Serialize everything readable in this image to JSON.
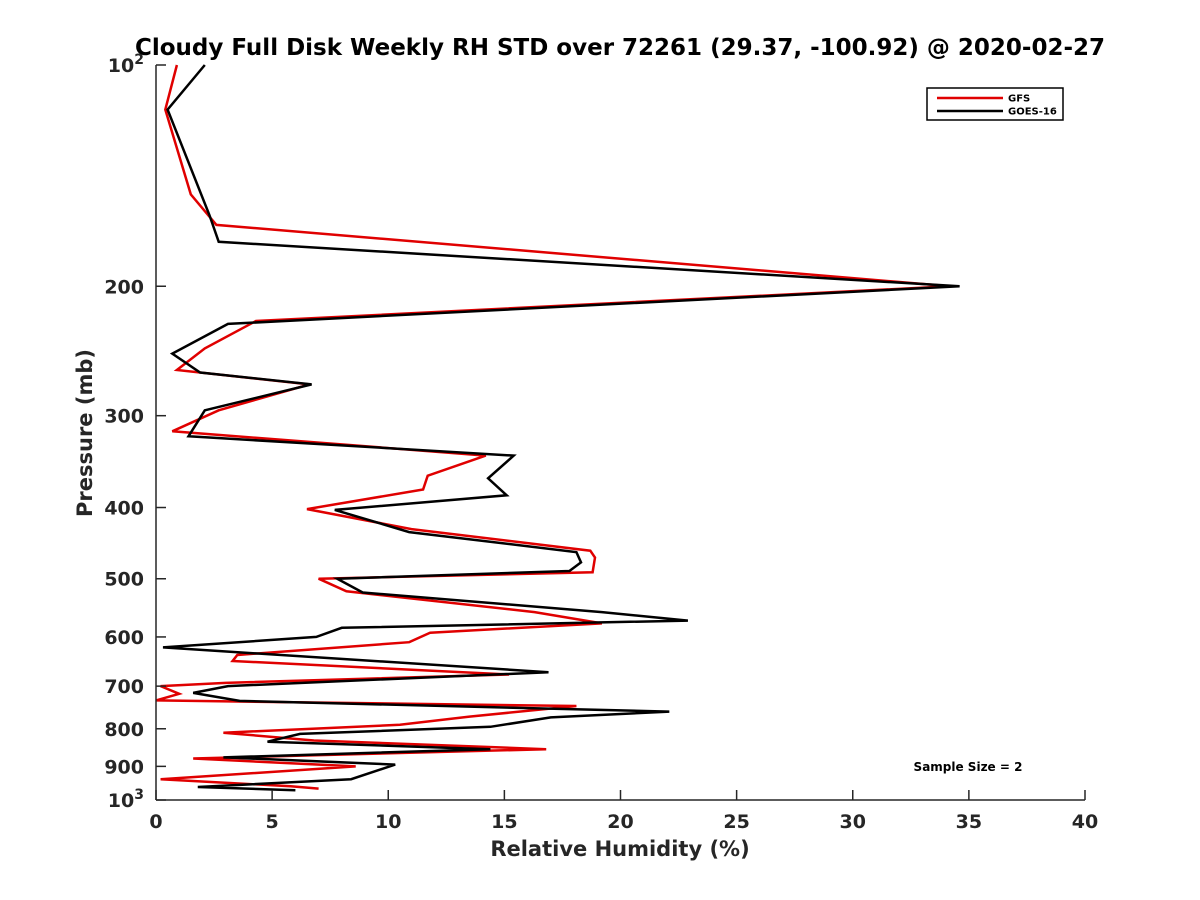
{
  "chart_data": {
    "type": "line",
    "title": "Cloudy Full Disk Weekly RH STD over 72261 (29.37, -100.92) @ 2020-02-27",
    "xlabel": "Relative Humidity (%)",
    "ylabel": "Pressure (mb)",
    "xlim": [
      0,
      40
    ],
    "ylim": [
      100,
      1000
    ],
    "yscale": "log",
    "y_reversed": true,
    "x_ticks": [
      "0",
      "5",
      "10",
      "15",
      "20",
      "25",
      "30",
      "35",
      "40"
    ],
    "y_ticks": [
      {
        "value": 100,
        "label": "10",
        "sup": "2"
      },
      {
        "value": 200,
        "label": "200"
      },
      {
        "value": 300,
        "label": "300"
      },
      {
        "value": 400,
        "label": "400"
      },
      {
        "value": 500,
        "label": "500"
      },
      {
        "value": 600,
        "label": "600"
      },
      {
        "value": 700,
        "label": "700"
      },
      {
        "value": 800,
        "label": "800"
      },
      {
        "value": 900,
        "label": "900"
      },
      {
        "value": 1000,
        "label": "10",
        "sup": "3"
      }
    ],
    "grid": false,
    "legend_position": "top-right",
    "annotation": "Sample Size = 2",
    "series": [
      {
        "name": "GFS",
        "color": "#e00000",
        "points": [
          [
            0.9,
            100
          ],
          [
            0.4,
            115
          ],
          [
            1.5,
            150
          ],
          [
            2.6,
            165
          ],
          [
            34.2,
            200
          ],
          [
            4.3,
            223
          ],
          [
            2.1,
            243
          ],
          [
            0.9,
            260
          ],
          [
            6.6,
            272
          ],
          [
            2.7,
            295
          ],
          [
            0.7,
            315
          ],
          [
            14.2,
            340
          ],
          [
            11.7,
            362
          ],
          [
            11.5,
            378
          ],
          [
            6.5,
            402
          ],
          [
            11.0,
            428
          ],
          [
            18.7,
            458
          ],
          [
            18.9,
            468
          ],
          [
            18.8,
            490
          ],
          [
            7.0,
            500
          ],
          [
            8.2,
            520
          ],
          [
            16.3,
            555
          ],
          [
            19.2,
            575
          ],
          [
            11.8,
            592
          ],
          [
            10.9,
            610
          ],
          [
            3.5,
            635
          ],
          [
            3.3,
            647
          ],
          [
            15.2,
            675
          ],
          [
            3.0,
            693
          ],
          [
            0.2,
            700
          ],
          [
            1.0,
            717
          ],
          [
            0.0,
            732
          ],
          [
            18.1,
            745
          ],
          [
            13.5,
            770
          ],
          [
            10.5,
            790
          ],
          [
            2.9,
            810
          ],
          [
            6.8,
            830
          ],
          [
            16.8,
            853
          ],
          [
            1.6,
            878
          ],
          [
            8.6,
            900
          ],
          [
            0.2,
            937
          ],
          [
            5.8,
            958
          ],
          [
            7.0,
            965
          ]
        ]
      },
      {
        "name": "GOES-16",
        "color": "#000000",
        "points": [
          [
            2.1,
            100
          ],
          [
            0.5,
            115
          ],
          [
            2.3,
            160
          ],
          [
            2.7,
            174
          ],
          [
            34.6,
            200
          ],
          [
            3.1,
            225
          ],
          [
            0.7,
            247
          ],
          [
            1.9,
            262
          ],
          [
            6.7,
            272
          ],
          [
            2.1,
            295
          ],
          [
            1.4,
            320
          ],
          [
            15.4,
            340
          ],
          [
            14.3,
            365
          ],
          [
            15.1,
            385
          ],
          [
            7.7,
            403
          ],
          [
            10.9,
            432
          ],
          [
            18.1,
            460
          ],
          [
            18.3,
            475
          ],
          [
            17.8,
            488
          ],
          [
            7.8,
            500
          ],
          [
            8.9,
            522
          ],
          [
            19.2,
            555
          ],
          [
            22.9,
            570
          ],
          [
            8.0,
            583
          ],
          [
            6.9,
            600
          ],
          [
            0.3,
            620
          ],
          [
            16.9,
            670
          ],
          [
            3.1,
            700
          ],
          [
            1.6,
            715
          ],
          [
            3.6,
            733
          ],
          [
            22.1,
            758
          ],
          [
            17.0,
            772
          ],
          [
            14.4,
            795
          ],
          [
            6.2,
            813
          ],
          [
            4.8,
            833
          ],
          [
            14.4,
            853
          ],
          [
            2.9,
            875
          ],
          [
            10.3,
            895
          ],
          [
            8.4,
            937
          ],
          [
            1.8,
            960
          ],
          [
            6.0,
            970
          ]
        ]
      }
    ]
  }
}
